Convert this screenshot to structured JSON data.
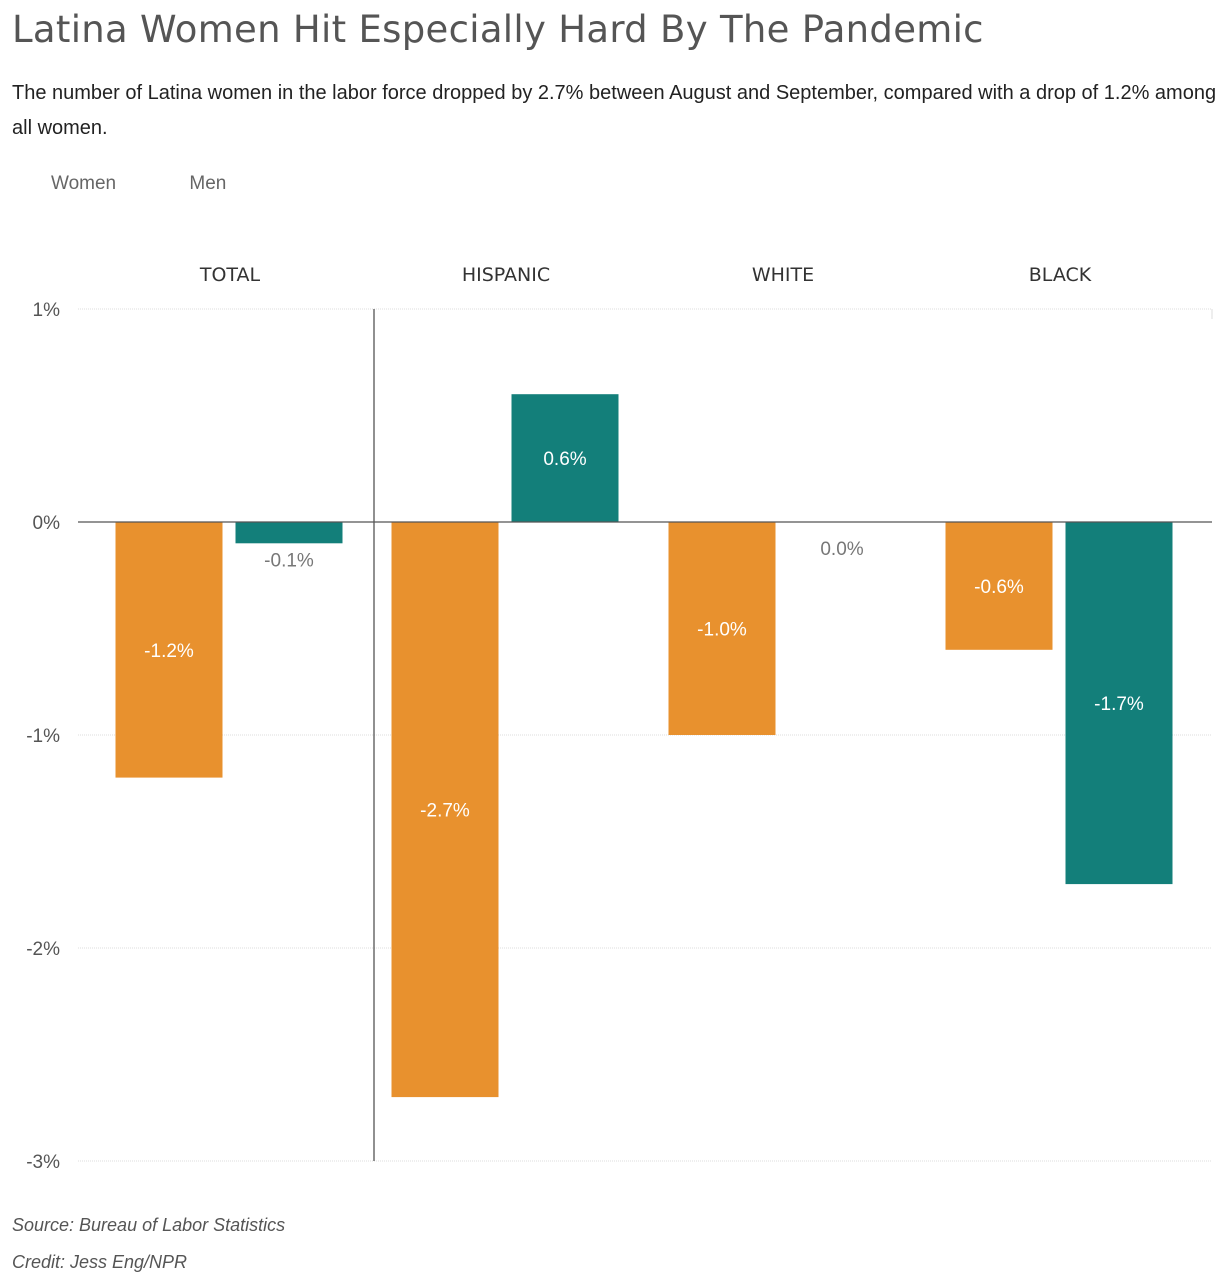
{
  "title": "Latina Women Hit Especially Hard By The Pandemic",
  "subtitle": "The number of Latina women in the labor force dropped by 2.7% between August and September, compared with a drop of 1.2% among all women.",
  "footer": {
    "source": "Source: Bureau of Labor Statistics",
    "credit": "Credit: Jess Eng/NPR"
  },
  "colors": {
    "women": "#e8912e",
    "men": "#137f7a"
  },
  "chart_data": {
    "type": "bar",
    "categories": [
      "TOTAL",
      "HISPANIC",
      "WHITE",
      "BLACK"
    ],
    "series": [
      {
        "name": "Women",
        "values": [
          -1.2,
          -2.7,
          -1.0,
          -0.6
        ]
      },
      {
        "name": "Men",
        "values": [
          -0.1,
          0.6,
          0.0,
          -1.7
        ]
      }
    ],
    "data_labels": {
      "Women": [
        "-1.2%",
        "-2.7%",
        "-1.0%",
        "-0.6%"
      ],
      "Men": [
        "-0.1%",
        "0.6%",
        "0.0%",
        "-1.7%"
      ]
    },
    "yticks": [
      1,
      0,
      -1,
      -2,
      -3
    ],
    "ytick_labels": [
      "1%",
      "0%",
      "-1%",
      "-2%",
      "-3%"
    ],
    "ylim": [
      -3,
      1
    ],
    "legend": "top-left",
    "grid": true
  }
}
